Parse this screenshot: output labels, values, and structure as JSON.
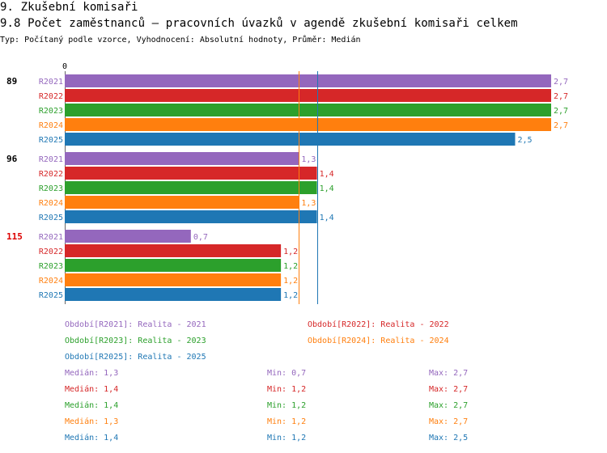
{
  "header": {
    "title": "9. Zkušební komisaři",
    "subtitle": "9.8 Počet zaměstnanců – pracovních úvazků v agendě zkušební komisaři celkem",
    "type_line": "Typ: Počítaný podle vzorce, Vyhodnocení: Absolutní hodnoty, Průměr: Medián"
  },
  "chart_data": {
    "type": "bar",
    "orientation": "horizontal",
    "x_axis_zero_label": "0",
    "xlim": [
      0,
      2.7
    ],
    "series_names": [
      "R2021",
      "R2022",
      "R2023",
      "R2024",
      "R2025"
    ],
    "colors": {
      "R2021": "#9467bd",
      "R2022": "#d62728",
      "R2023": "#2ca02c",
      "R2024": "#ff7f0e",
      "R2025": "#1f77b4"
    },
    "groups": [
      {
        "label": "89",
        "label_color": "#000000",
        "bars": [
          {
            "series": "R2021",
            "value": 2.7,
            "value_label": "2,7"
          },
          {
            "series": "R2022",
            "value": 2.7,
            "value_label": "2,7"
          },
          {
            "series": "R2023",
            "value": 2.7,
            "value_label": "2,7"
          },
          {
            "series": "R2024",
            "value": 2.7,
            "value_label": "2,7"
          },
          {
            "series": "R2025",
            "value": 2.5,
            "value_label": "2,5"
          }
        ]
      },
      {
        "label": "96",
        "label_color": "#000000",
        "bars": [
          {
            "series": "R2021",
            "value": 1.3,
            "value_label": "1,3"
          },
          {
            "series": "R2022",
            "value": 1.4,
            "value_label": "1,4"
          },
          {
            "series": "R2023",
            "value": 1.4,
            "value_label": "1,4"
          },
          {
            "series": "R2024",
            "value": 1.3,
            "value_label": "1,3"
          },
          {
            "series": "R2025",
            "value": 1.4,
            "value_label": "1,4"
          }
        ]
      },
      {
        "label": "115",
        "label_color": "#dd0000",
        "bars": [
          {
            "series": "R2021",
            "value": 0.7,
            "value_label": "0,7"
          },
          {
            "series": "R2022",
            "value": 1.2,
            "value_label": "1,2"
          },
          {
            "series": "R2023",
            "value": 1.2,
            "value_label": "1,2"
          },
          {
            "series": "R2024",
            "value": 1.2,
            "value_label": "1,2"
          },
          {
            "series": "R2025",
            "value": 1.2,
            "value_label": "1,2"
          }
        ]
      }
    ],
    "reference_lines": [
      {
        "series": "R2024",
        "value": 1.3
      },
      {
        "series": "R2025",
        "value": 1.4
      }
    ]
  },
  "legend": {
    "periods": [
      {
        "series": "R2021",
        "text": "Období[R2021]: Realita - 2021"
      },
      {
        "series": "R2022",
        "text": "Období[R2022]: Realita - 2022"
      },
      {
        "series": "R2023",
        "text": "Období[R2023]: Realita - 2023"
      },
      {
        "series": "R2024",
        "text": "Období[R2024]: Realita - 2024"
      },
      {
        "series": "R2025",
        "text": "Období[R2025]: Realita - 2025"
      }
    ],
    "stats": [
      {
        "series": "R2021",
        "median": "Medián: 1,3",
        "min": "Min: 0,7",
        "max": "Max: 2,7"
      },
      {
        "series": "R2022",
        "median": "Medián: 1,4",
        "min": "Min: 1,2",
        "max": "Max: 2,7"
      },
      {
        "series": "R2023",
        "median": "Medián: 1,4",
        "min": "Min: 1,2",
        "max": "Max: 2,7"
      },
      {
        "series": "R2024",
        "median": "Medián: 1,3",
        "min": "Min: 1,2",
        "max": "Max: 2,7"
      },
      {
        "series": "R2025",
        "median": "Medián: 1,4",
        "min": "Min: 1,2",
        "max": "Max: 2,5"
      }
    ]
  }
}
